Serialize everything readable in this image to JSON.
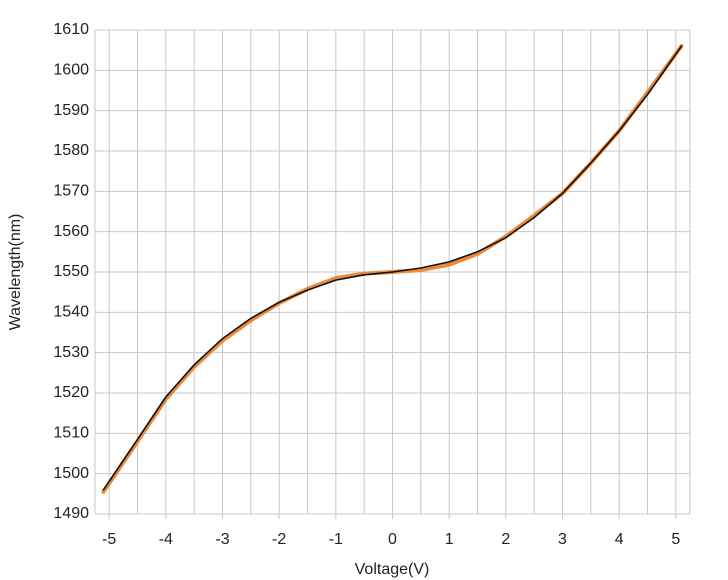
{
  "chart_data": {
    "type": "line",
    "x_label": "Voltage(V)",
    "y_label": "Wavelength(nm)",
    "x": [
      -5.1,
      -4.5,
      -4,
      -3.5,
      -3,
      -2.5,
      -2,
      -1.5,
      -1,
      -0.5,
      0,
      0.5,
      1,
      1.5,
      2,
      2.5,
      3,
      3.5,
      4,
      4.5,
      5.1
    ],
    "series": [
      {
        "color": "#ed8a3a",
        "values": [
          1495.5,
          1508,
          1518.5,
          1526.5,
          1533,
          1538,
          1542.3,
          1545.8,
          1548.5,
          1549.6,
          1550,
          1550.5,
          1551.8,
          1554.5,
          1558.8,
          1564,
          1569.5,
          1577,
          1585,
          1594.5,
          1606
        ]
      },
      {
        "color": "#111111",
        "values": [
          1496,
          1508.5,
          1519,
          1527,
          1533.5,
          1538.5,
          1542.5,
          1545.5,
          1548,
          1549.3,
          1550,
          1551,
          1552.5,
          1555,
          1558.5,
          1563.5,
          1569.5,
          1577,
          1585,
          1594,
          1606
        ]
      }
    ],
    "xlim": [
      -5.25,
      5.25
    ],
    "xticks": [
      -5,
      -4,
      -3,
      -2,
      -1,
      0,
      1,
      2,
      3,
      4,
      5
    ],
    "xgrid": [
      -5,
      -4.5,
      -4,
      -3.5,
      -3,
      -2.5,
      -2,
      -1.5,
      -1,
      -0.5,
      0,
      0.5,
      1,
      1.5,
      2,
      2.5,
      3,
      3.5,
      4,
      4.5,
      5
    ],
    "ylim": [
      1490,
      1610
    ],
    "yticks": [
      1490,
      1500,
      1510,
      1520,
      1530,
      1540,
      1550,
      1560,
      1570,
      1580,
      1590,
      1600,
      1610
    ],
    "grid": true
  }
}
